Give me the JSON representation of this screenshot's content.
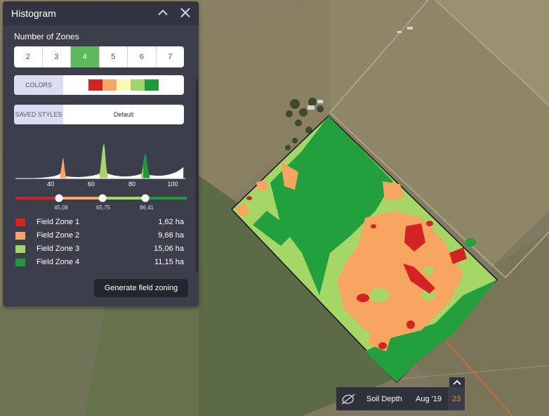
{
  "panel": {
    "title": "Histogram",
    "zones_label": "Number of Zones",
    "zone_options": [
      "2",
      "3",
      "4",
      "5",
      "6",
      "7"
    ],
    "selected_zone": "4",
    "colors_label": "COLORS",
    "palette": [
      "#d42323",
      "#f9a566",
      "#fbf8b4",
      "#9fd56a",
      "#1f9a3a"
    ],
    "saved_styles_label": "SAVED STYLES",
    "saved_style_value": "Default",
    "histogram": {
      "axis_labels": [
        "40",
        "60",
        "80",
        "100"
      ],
      "thresholds": [
        "45,08",
        "65,75",
        "86,41"
      ]
    },
    "legend": [
      {
        "name": "Field Zone 1",
        "area": "1,62 ha",
        "color": "#d42323"
      },
      {
        "name": "Field Zone 2",
        "area": "9,66 ha",
        "color": "#f9a566"
      },
      {
        "name": "Field Zone 3",
        "area": "15,06 ha",
        "color": "#a3d864"
      },
      {
        "name": "Field Zone 4",
        "area": "11,15 ha",
        "color": "#1f9a3a"
      }
    ],
    "generate_label": "Generate field zoning"
  },
  "bottom_bar": {
    "layer_icon": "soil-layer-icon",
    "layer_label": "Soil Depth",
    "date_label": "Aug '19",
    "day": "23"
  }
}
